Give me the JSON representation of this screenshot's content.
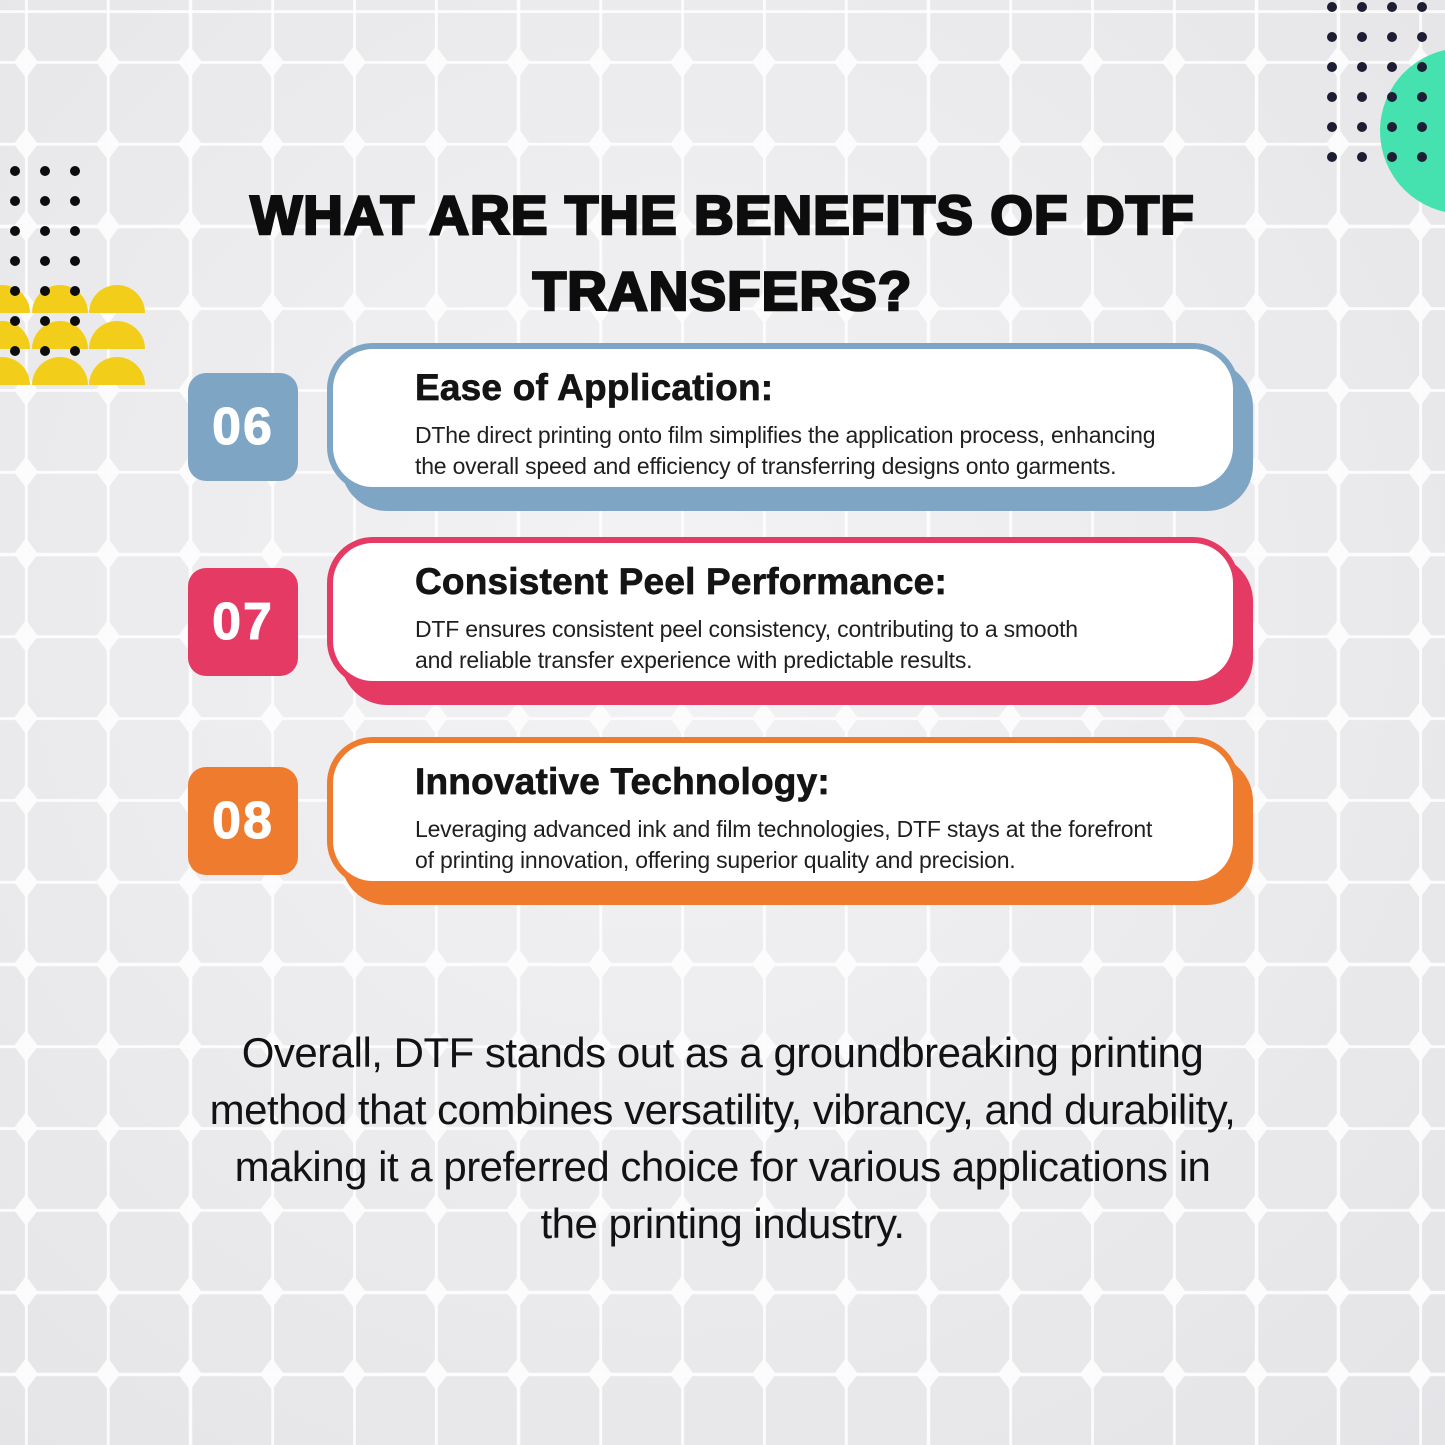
{
  "page": {
    "title_lines": [
      "WHAT ARE THE BENEFITS OF DTF",
      "TRANSFERS?"
    ]
  },
  "benefits": [
    {
      "number": "06",
      "accent": "#7fa5c5",
      "title": "Ease of Application:",
      "body_lines": [
        "DThe direct printing onto film simplifies the application process, enhancing",
        "the overall speed and efficiency of transferring designs onto garments."
      ]
    },
    {
      "number": "07",
      "accent": "#e43a63",
      "title": "Consistent Peel Performance:",
      "body_lines": [
        "DTF ensures consistent peel consistency, contributing to a smooth",
        "and reliable transfer experience with predictable results."
      ]
    },
    {
      "number": "08",
      "accent": "#ef7b2f",
      "title": "Innovative Technology:",
      "body_lines": [
        "Leveraging advanced ink and film technologies, DTF stays at the forefront",
        "of printing innovation, offering superior quality and precision."
      ]
    }
  ],
  "conclusion": {
    "lines": [
      "Overall, DTF stands out as a groundbreaking printing",
      "method that combines versatility, vibrancy, and durability,",
      "making it a preferred choice for various applications in",
      "the printing industry."
    ]
  },
  "decor": {
    "teal_circle_color": "#45e2b0",
    "yellow_scallop_color": "#f2ce1b",
    "navy_dot_color": "#1d1d33",
    "black_dot_color": "#0c0c0c"
  }
}
